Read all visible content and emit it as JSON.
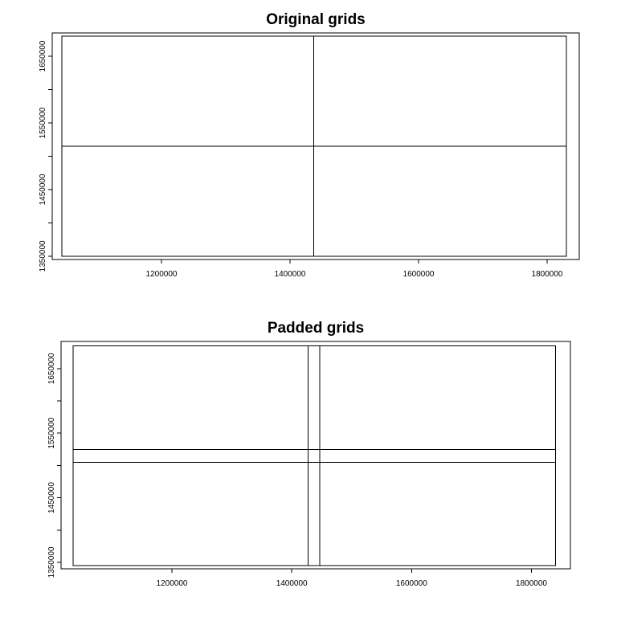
{
  "chart_data": [
    {
      "type": "grid",
      "title": "Original grids",
      "xlim": [
        1030000,
        1850000
      ],
      "ylim": [
        1345000,
        1685000
      ],
      "extent": {
        "xmin": 1045000,
        "xmax": 1830000,
        "ymin": 1350000,
        "ymax": 1680000
      },
      "x_ticks": [
        {
          "value": 1200000,
          "label": "1200000"
        },
        {
          "value": 1400000,
          "label": "1400000"
        },
        {
          "value": 1600000,
          "label": "1600000"
        },
        {
          "value": 1800000,
          "label": "1800000"
        }
      ],
      "y_ticks": [
        {
          "value": 1350000,
          "label": "1350000"
        },
        {
          "value": 1450000,
          "label": "1450000"
        },
        {
          "value": 1550000,
          "label": "1550000"
        },
        {
          "value": 1650000,
          "label": "1650000"
        }
      ],
      "y_minor_ticks": [
        1400000,
        1500000,
        1600000
      ],
      "cells": [
        {
          "xmin": 1045000,
          "xmax": 1437000,
          "ymin": 1350000,
          "ymax": 1515000
        },
        {
          "xmin": 1437000,
          "xmax": 1830000,
          "ymin": 1350000,
          "ymax": 1515000
        },
        {
          "xmin": 1045000,
          "xmax": 1437000,
          "ymin": 1515000,
          "ymax": 1680000
        },
        {
          "xmin": 1437000,
          "xmax": 1830000,
          "ymin": 1515000,
          "ymax": 1680000
        }
      ]
    },
    {
      "type": "grid",
      "title": "Padded grids",
      "xlim": [
        1015000,
        1865000
      ],
      "ylim": [
        1340000,
        1692000
      ],
      "extent": {
        "xmin": 1035000,
        "xmax": 1840000,
        "ymin": 1345000,
        "ymax": 1685000
      },
      "x_ticks": [
        {
          "value": 1200000,
          "label": "1200000"
        },
        {
          "value": 1400000,
          "label": "1400000"
        },
        {
          "value": 1600000,
          "label": "1600000"
        },
        {
          "value": 1800000,
          "label": "1800000"
        }
      ],
      "y_ticks": [
        {
          "value": 1350000,
          "label": "1350000"
        },
        {
          "value": 1450000,
          "label": "1450000"
        },
        {
          "value": 1550000,
          "label": "1550000"
        },
        {
          "value": 1650000,
          "label": "1650000"
        }
      ],
      "y_minor_ticks": [
        1400000,
        1500000,
        1600000
      ],
      "cells": [
        {
          "xmin": 1035000,
          "xmax": 1447000,
          "ymin": 1345000,
          "ymax": 1525000
        },
        {
          "xmin": 1427000,
          "xmax": 1840000,
          "ymin": 1345000,
          "ymax": 1525000
        },
        {
          "xmin": 1035000,
          "xmax": 1447000,
          "ymin": 1505000,
          "ymax": 1685000
        },
        {
          "xmin": 1427000,
          "xmax": 1840000,
          "ymin": 1505000,
          "ymax": 1685000
        }
      ]
    }
  ]
}
